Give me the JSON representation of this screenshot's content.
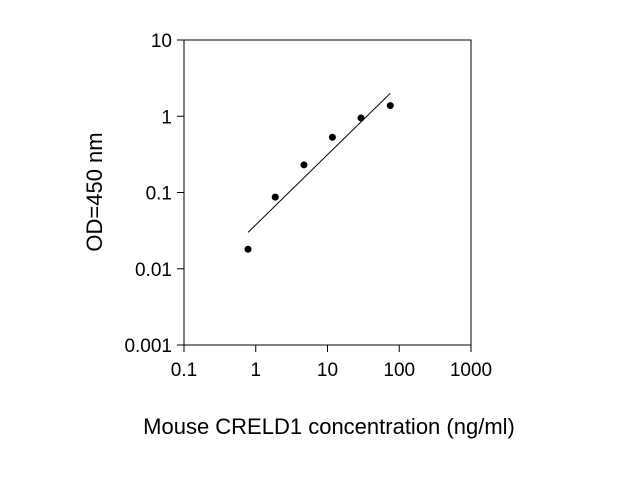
{
  "chart_data": {
    "type": "scatter",
    "title": "",
    "xlabel": "Mouse CRELD1 concentration (ng/ml)",
    "ylabel": "OD=450 nm",
    "xscale": "log",
    "yscale": "log",
    "xlim": [
      0.1,
      1000
    ],
    "ylim": [
      0.001,
      10
    ],
    "grid": false,
    "x_ticks": [
      0.1,
      1,
      10,
      100,
      1000
    ],
    "x_tick_labels": [
      "0.1",
      "1",
      "10",
      "100",
      "1000"
    ],
    "y_ticks": [
      0.001,
      0.01,
      0.1,
      1,
      10
    ],
    "y_tick_labels": [
      "0.001",
      "0.01",
      "0.1",
      "1",
      "10"
    ],
    "points": [
      {
        "x": 0.78,
        "y": 0.018
      },
      {
        "x": 1.87,
        "y": 0.087
      },
      {
        "x": 4.7,
        "y": 0.23
      },
      {
        "x": 11.7,
        "y": 0.53
      },
      {
        "x": 29.3,
        "y": 0.95
      },
      {
        "x": 75.0,
        "y": 1.38
      }
    ],
    "fit_line": {
      "x": [
        0.78,
        75.0
      ],
      "y": [
        0.03,
        2.0
      ]
    },
    "colors": {
      "points": "#000000",
      "line": "#000000",
      "axes": "#000000"
    }
  }
}
